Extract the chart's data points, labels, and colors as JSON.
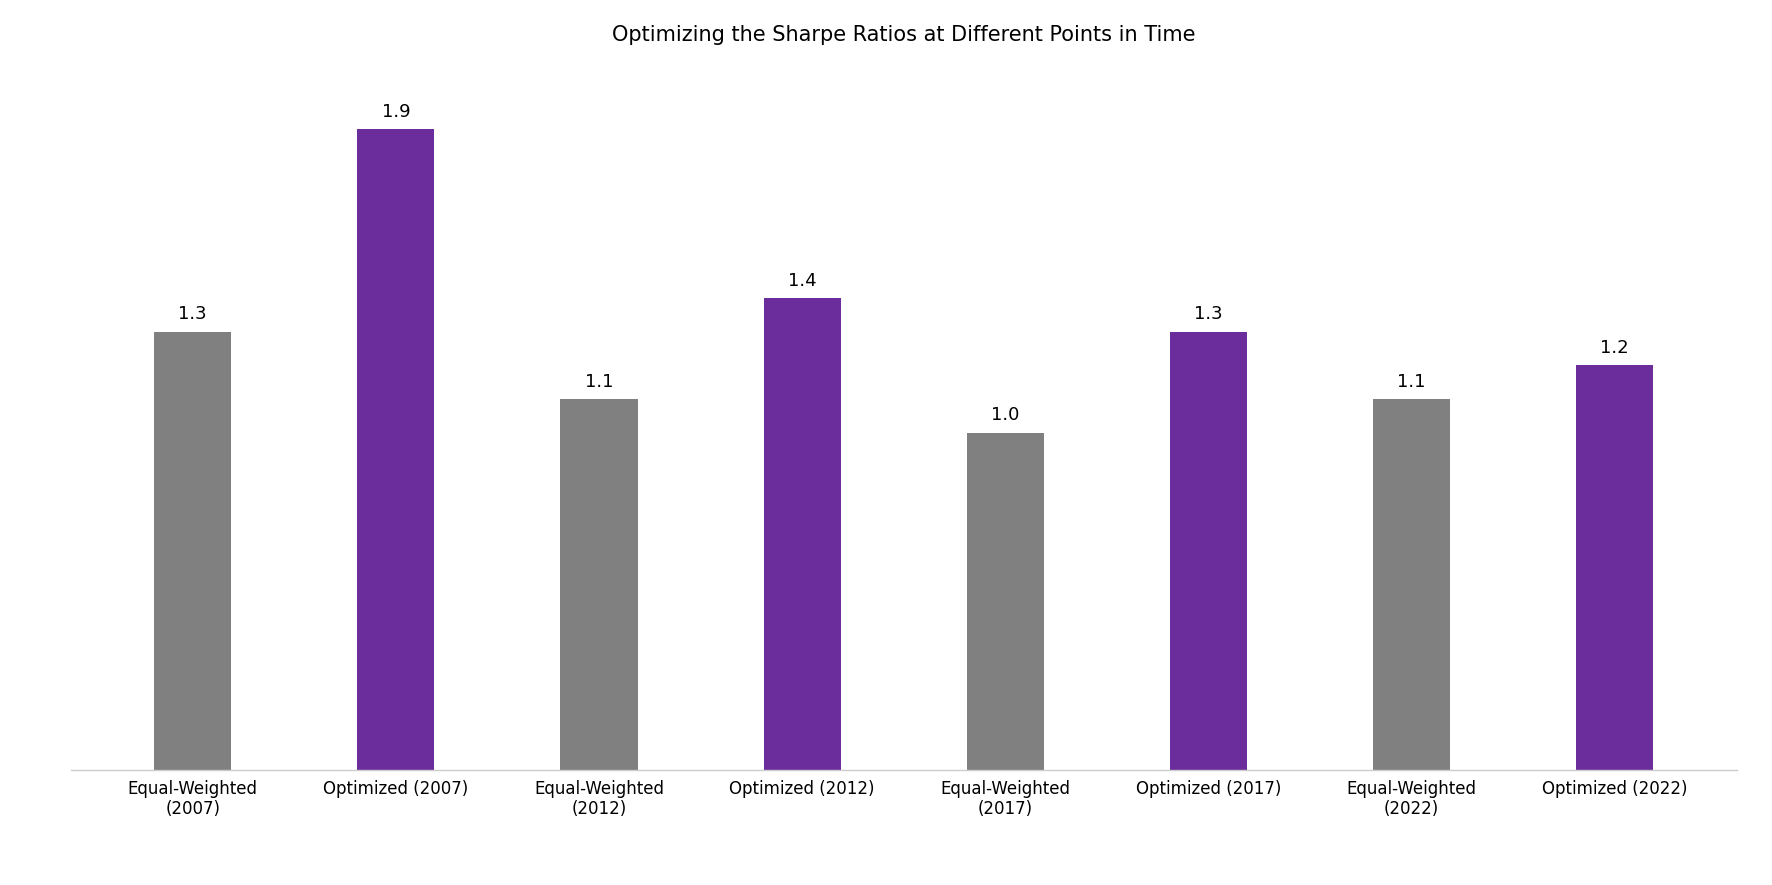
{
  "title": "Optimizing the Sharpe Ratios at Different Points in Time",
  "categories": [
    "Equal-Weighted\n(2007)",
    "Optimized (2007)",
    "Equal-Weighted\n(2012)",
    "Optimized (2012)",
    "Equal-Weighted\n(2017)",
    "Optimized (2017)",
    "Equal-Weighted\n(2022)",
    "Optimized (2022)"
  ],
  "values": [
    1.3,
    1.9,
    1.1,
    1.4,
    1.0,
    1.3,
    1.1,
    1.2
  ],
  "bar_colors": [
    "#808080",
    "#6B2D9B",
    "#808080",
    "#6B2D9B",
    "#808080",
    "#6B2D9B",
    "#808080",
    "#6B2D9B"
  ],
  "label_values": [
    "1.3",
    "1.9",
    "1.1",
    "1.4",
    "1.0",
    "1.3",
    "1.1",
    "1.2"
  ],
  "ylim": [
    0,
    2.1
  ],
  "background_color": "#ffffff",
  "title_fontsize": 15,
  "label_fontsize": 13,
  "tick_fontsize": 12,
  "bar_width": 0.38
}
